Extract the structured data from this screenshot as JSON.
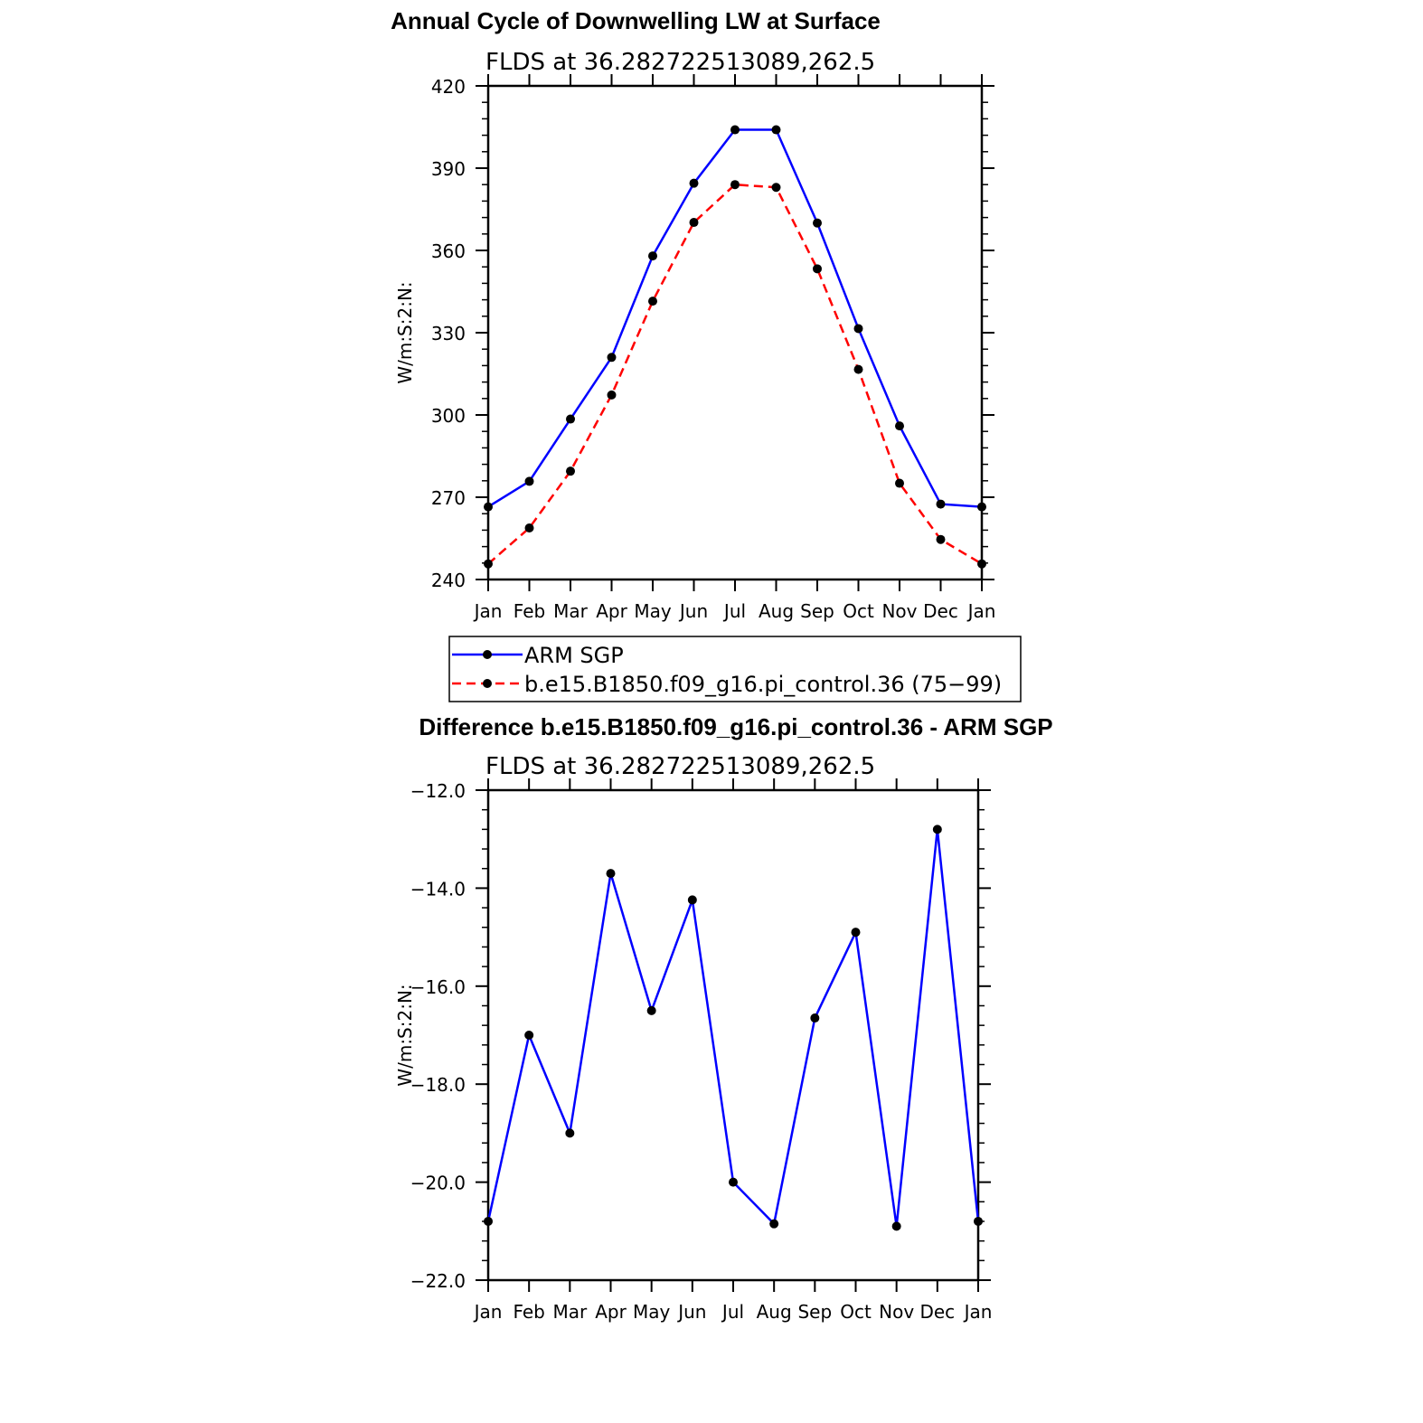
{
  "chart_data": [
    {
      "type": "line",
      "title": "Annual Cycle of Downwelling LW at Surface",
      "subtitle": "FLDS at 36.282722513089,262.5",
      "ylabel": "W/m:S:2:N:",
      "xlabel": "",
      "categories": [
        "Jan",
        "Feb",
        "Mar",
        "Apr",
        "May",
        "Jun",
        "Jul",
        "Aug",
        "Sep",
        "Oct",
        "Nov",
        "Dec",
        "Jan"
      ],
      "ylim": [
        240,
        420
      ],
      "yticks": [
        240,
        270,
        300,
        330,
        360,
        390,
        420
      ],
      "ytick_labels": [
        "240",
        "270",
        "300",
        "330",
        "360",
        "390",
        "420"
      ],
      "series": [
        {
          "name": "ARM SGP",
          "color": "#0000ff",
          "dash": "solid",
          "values": [
            266.5,
            275.8,
            298.5,
            321,
            358,
            384.5,
            404,
            404,
            370,
            331.5,
            296,
            267.5,
            266.5
          ]
        },
        {
          "name": "b.e15.B1850.f09_g16.pi_control.36 (75−99)",
          "color": "#ff0000",
          "dash": "dashed",
          "values": [
            245.7,
            258.8,
            279.5,
            307.3,
            341.5,
            370.2,
            384,
            383,
            353.3,
            316.6,
            275.1,
            254.6,
            245.7
          ]
        }
      ],
      "legend": "below"
    },
    {
      "type": "line",
      "title": "Difference b.e15.B1850.f09_g16.pi_control.36 - ARM SGP",
      "subtitle": "FLDS at 36.282722513089,262.5",
      "ylabel": "W/m:S:2:N:",
      "xlabel": "",
      "categories": [
        "Jan",
        "Feb",
        "Mar",
        "Apr",
        "May",
        "Jun",
        "Jul",
        "Aug",
        "Sep",
        "Oct",
        "Nov",
        "Dec",
        "Jan"
      ],
      "ylim": [
        -22,
        -12
      ],
      "yticks": [
        -22,
        -20,
        -18,
        -16,
        -14,
        -12
      ],
      "ytick_labels": [
        "−22.0",
        "−20.0",
        "−18.0",
        "−16.0",
        "−14.0",
        "−12.0"
      ],
      "series": [
        {
          "color": "#0000ff",
          "dash": "solid",
          "values": [
            -20.8,
            -17.0,
            -19.0,
            -13.7,
            -16.5,
            -14.24,
            -20.0,
            -20.85,
            -16.65,
            -14.9,
            -20.9,
            -12.8,
            -20.8
          ]
        }
      ]
    }
  ]
}
